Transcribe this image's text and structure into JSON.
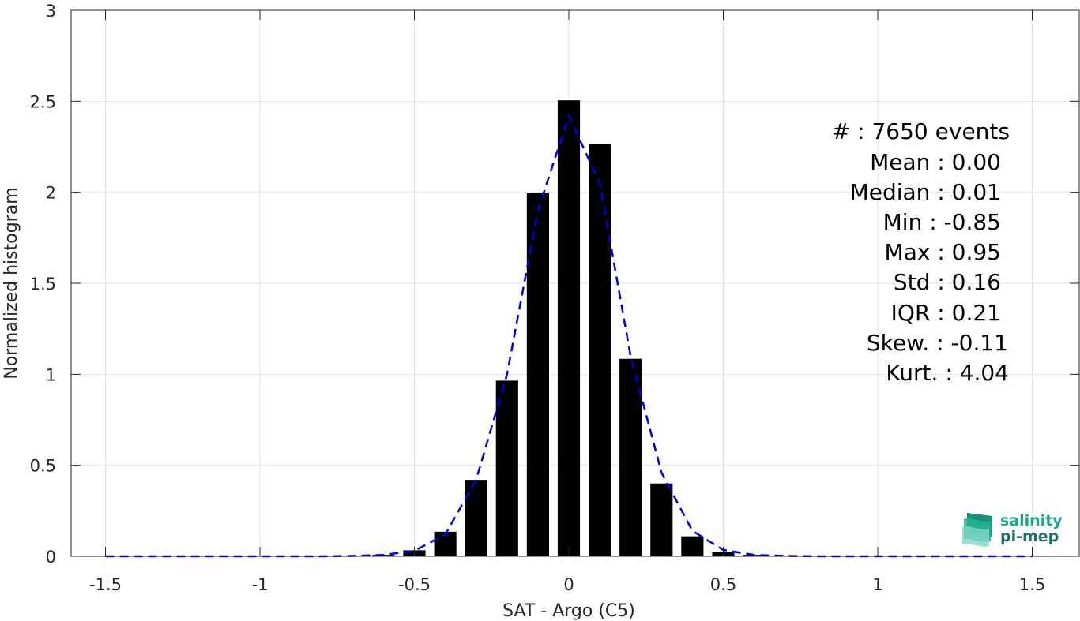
{
  "chart_data": {
    "type": "bar",
    "xlabel": "SAT - Argo (C5)",
    "ylabel": "Normalized histogram",
    "xlim": [
      -1.5,
      1.5
    ],
    "ylim": [
      0,
      3
    ],
    "xticks": [
      -1.5,
      -1,
      -0.5,
      0,
      0.5,
      1,
      1.5
    ],
    "xtick_labels": [
      "-1.5",
      "-1",
      "-0.5",
      "0",
      "0.5",
      "1",
      "1.5"
    ],
    "yticks": [
      0,
      0.5,
      1,
      1.5,
      2,
      2.5,
      3
    ],
    "ytick_labels": [
      "0",
      "0.5",
      "1",
      "1.5",
      "2",
      "2.5",
      "3"
    ],
    "grid": true,
    "bar_color": "#000000",
    "bin_width": 0.1,
    "bars": [
      {
        "x": -0.7,
        "y": 0.004
      },
      {
        "x": -0.6,
        "y": 0.008
      },
      {
        "x": -0.5,
        "y": 0.033
      },
      {
        "x": -0.4,
        "y": 0.135
      },
      {
        "x": -0.3,
        "y": 0.42
      },
      {
        "x": -0.2,
        "y": 0.965
      },
      {
        "x": -0.1,
        "y": 1.995
      },
      {
        "x": 0.0,
        "y": 2.505
      },
      {
        "x": 0.1,
        "y": 2.265
      },
      {
        "x": 0.2,
        "y": 1.085
      },
      {
        "x": 0.3,
        "y": 0.4
      },
      {
        "x": 0.4,
        "y": 0.11
      },
      {
        "x": 0.5,
        "y": 0.022
      },
      {
        "x": 0.6,
        "y": 0.008
      }
    ],
    "fit_line": {
      "style": "dashed",
      "color": "#0000dd",
      "x": [
        -1.5,
        -1.0,
        -0.8,
        -0.7,
        -0.6,
        -0.5,
        -0.4,
        -0.3,
        -0.2,
        -0.1,
        0.0,
        0.1,
        0.2,
        0.3,
        0.4,
        0.5,
        0.6,
        0.7,
        0.8,
        1.0,
        1.5
      ],
      "y": [
        0,
        0,
        0,
        0.002,
        0.008,
        0.03,
        0.12,
        0.42,
        1.0,
        1.9,
        2.42,
        2.05,
        1.1,
        0.46,
        0.14,
        0.035,
        0.008,
        0.002,
        0,
        0,
        0
      ]
    }
  },
  "stats": [
    {
      "text": "#  : 7650 events"
    },
    {
      "text": "Mean : 0.00"
    },
    {
      "text": "Median : 0.01"
    },
    {
      "text": "Min : -0.85"
    },
    {
      "text": "Max : 0.95"
    },
    {
      "text": "Std : 0.16"
    },
    {
      "text": "IQR : 0.21"
    },
    {
      "text": "Skew. : -0.11"
    },
    {
      "text": "Kurt. : 4.04"
    }
  ],
  "logo": {
    "line1": "salinity",
    "line2": "pi-mep",
    "color1": "#1aa58a",
    "color2": "#1d6f68"
  }
}
